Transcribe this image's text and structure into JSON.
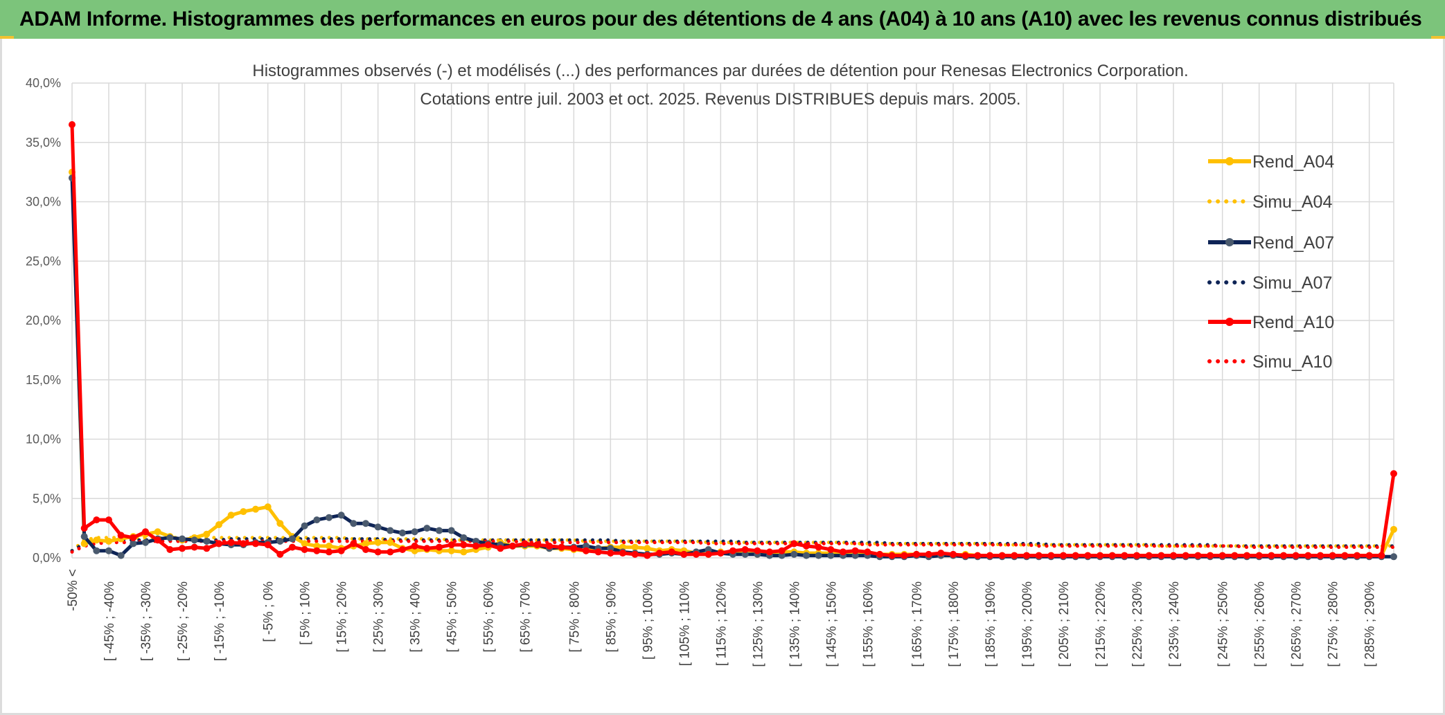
{
  "banner": {
    "title": "ADAM Informe. Histogrammes des performances en euros pour des détentions de 4 ans (A04) à 10 ans (A10) avec les revenus connus distribués"
  },
  "colors": {
    "banner_bg": "#7cc47b",
    "A04": "#FFC000",
    "A07": "#0E2456",
    "A10": "#FF0000",
    "grid": "#D9D9D9"
  },
  "chart_data": {
    "type": "line",
    "title": "Histogrammes observés (-) et modélisés (...) des performances par durées de détention pour Renesas Electronics Corporation.",
    "subtitle": "Cotations entre juil. 2003 et oct. 2025. Revenus DISTRIBUES depuis mars. 2005.",
    "xlabel": "",
    "ylabel": "",
    "ylim": [
      0,
      40
    ],
    "y_ticks": [
      "0,0%",
      "5,0%",
      "10,0%",
      "15,0%",
      "20,0%",
      "25,0%",
      "30,0%",
      "35,0%",
      "40,0%"
    ],
    "grid": true,
    "legend_position": "right",
    "x_tick_labels": [
      "-50% <",
      "[ -45% ; -40%",
      "[ -35% ; -30%",
      "[ -25% ; -20%",
      "[ -15% ; -10%",
      "[ -5% ; 0%",
      "[ 5% ; 10%",
      "[ 15% ; 20%",
      "[ 25% ; 30%",
      "[ 35% ; 40%",
      "[ 45% ; 50%",
      "[ 55% ; 60%",
      "[ 65% ; 70%",
      "[ 75% ; 80%",
      "[ 85% ; 90%",
      "[ 95% ; 100%",
      "[ 105% ; 110%",
      "[ 115% ; 120%",
      "[ 125% ; 130%",
      "[ 135% ; 140%",
      "[ 145% ; 150%",
      "[ 155% ; 160%",
      "[ 165% ; 170%",
      "[ 175% ; 180%",
      "[ 185% ; 190%",
      "[ 195% ; 200%",
      "[ 205% ; 210%",
      "[ 215% ; 220%",
      "[ 225% ; 230%",
      "[ 235% ; 240%",
      "[ 245% ; 250%",
      "[ 255% ; 260%",
      "[ 265% ; 270%",
      "[ 275% ; 280%",
      "[ 285% ; 290%"
    ],
    "series": [
      {
        "name": "Rend_A04",
        "style": "solid",
        "color": "#FFC000",
        "values": [
          32.5,
          1.2,
          1.5,
          1.4,
          1.6,
          1.8,
          2.0,
          2.2,
          1.8,
          1.5,
          1.7,
          2.0,
          2.8,
          3.6,
          3.9,
          4.1,
          4.3,
          2.9,
          1.8,
          1.2,
          1.0,
          1.0,
          0.8,
          1.0,
          1.2,
          1.3,
          1.3,
          0.8,
          0.6,
          0.7,
          0.6,
          0.6,
          0.5,
          0.7,
          0.9,
          1.3,
          1.0,
          1.0,
          1.0,
          0.8,
          0.8,
          0.7,
          0.6,
          0.8,
          0.9,
          0.9,
          0.9,
          0.8,
          0.6,
          0.7,
          0.6,
          0.4,
          0.3,
          0.5,
          0.4,
          0.4,
          0.3,
          0.4,
          0.5,
          0.5,
          0.4,
          0.4,
          0.4,
          0.4,
          0.4,
          0.3,
          0.3,
          0.3,
          0.3,
          0.3,
          0.2,
          0.2,
          0.2,
          0.3,
          0.2,
          0.2,
          0.2,
          0.2,
          0.2,
          0.2,
          0.2,
          0.2,
          0.2,
          0.2,
          0.2,
          0.2,
          0.2,
          0.2,
          0.2,
          0.2,
          0.2,
          0.2,
          0.2,
          0.2,
          0.2,
          0.2,
          0.2,
          0.2,
          0.2,
          0.2,
          0.2,
          0.2,
          0.2,
          0.2,
          0.2,
          0.2,
          0.2,
          0.2,
          2.4
        ]
      },
      {
        "name": "Simu_A04",
        "style": "dotted",
        "color": "#FFC000",
        "values": [
          0.6,
          1.5,
          1.7,
          1.7,
          1.7,
          1.7,
          1.7,
          1.7,
          1.7,
          1.7,
          1.7,
          1.7,
          1.7,
          1.7,
          1.7,
          1.7,
          1.7,
          1.7,
          1.7,
          1.7,
          1.7,
          1.7,
          1.7,
          1.6,
          1.6,
          1.6,
          1.6,
          1.6,
          1.6,
          1.6,
          1.6,
          1.5,
          1.5,
          1.5,
          1.5,
          1.5,
          1.5,
          1.5,
          1.5,
          1.5,
          1.5,
          1.5,
          1.4,
          1.4,
          1.4,
          1.4,
          1.4,
          1.4,
          1.4,
          1.4,
          1.4,
          1.4,
          1.3,
          1.3,
          1.3,
          1.3,
          1.3,
          1.3,
          1.3,
          1.3,
          1.3,
          1.3,
          1.3,
          1.3,
          1.2,
          1.2,
          1.2,
          1.2,
          1.2,
          1.2,
          1.2,
          1.2,
          1.2,
          1.2,
          1.2,
          1.2,
          1.1,
          1.1,
          1.1,
          1.1,
          1.1,
          1.1,
          1.1,
          1.1,
          1.1,
          1.1,
          1.1,
          1.1,
          1.1,
          1.0,
          1.0,
          1.0,
          1.0,
          1.0,
          1.0,
          1.0,
          1.0,
          1.0,
          1.0,
          1.0,
          1.0,
          1.0,
          1.0,
          1.0,
          1.0,
          1.0,
          1.0,
          1.0,
          1.0
        ]
      },
      {
        "name": "Rend_A07",
        "style": "solid",
        "color": "#0E2456",
        "values": [
          32.0,
          1.8,
          0.6,
          0.6,
          0.2,
          1.2,
          1.3,
          1.6,
          1.7,
          1.6,
          1.5,
          1.4,
          1.2,
          1.1,
          1.1,
          1.3,
          1.3,
          1.4,
          1.6,
          2.7,
          3.2,
          3.4,
          3.6,
          2.9,
          2.9,
          2.6,
          2.3,
          2.1,
          2.2,
          2.5,
          2.3,
          2.3,
          1.7,
          1.4,
          1.2,
          1.1,
          1.0,
          1.1,
          1.1,
          0.8,
          0.9,
          0.9,
          1.0,
          0.8,
          0.8,
          0.5,
          0.4,
          0.3,
          0.3,
          0.4,
          0.3,
          0.5,
          0.7,
          0.4,
          0.3,
          0.3,
          0.3,
          0.2,
          0.2,
          0.3,
          0.2,
          0.2,
          0.2,
          0.2,
          0.2,
          0.2,
          0.1,
          0.1,
          0.1,
          0.2,
          0.1,
          0.2,
          0.2,
          0.1,
          0.1,
          0.1,
          0.1,
          0.1,
          0.1,
          0.1,
          0.1,
          0.1,
          0.1,
          0.1,
          0.1,
          0.1,
          0.1,
          0.1,
          0.1,
          0.1,
          0.1,
          0.1,
          0.1,
          0.1,
          0.1,
          0.1,
          0.1,
          0.1,
          0.1,
          0.1,
          0.1,
          0.1,
          0.1,
          0.1,
          0.1,
          0.1,
          0.1,
          0.1,
          0.1
        ]
      },
      {
        "name": "Simu_A07",
        "style": "dotted",
        "color": "#0E2456",
        "values": [
          0.6,
          1.2,
          1.4,
          1.4,
          1.5,
          1.5,
          1.5,
          1.5,
          1.5,
          1.5,
          1.5,
          1.5,
          1.5,
          1.6,
          1.6,
          1.6,
          1.6,
          1.6,
          1.6,
          1.6,
          1.6,
          1.6,
          1.6,
          1.6,
          1.6,
          1.6,
          1.5,
          1.5,
          1.5,
          1.5,
          1.5,
          1.5,
          1.5,
          1.5,
          1.5,
          1.5,
          1.5,
          1.5,
          1.5,
          1.5,
          1.5,
          1.5,
          1.5,
          1.5,
          1.5,
          1.4,
          1.4,
          1.4,
          1.4,
          1.4,
          1.4,
          1.4,
          1.4,
          1.4,
          1.4,
          1.3,
          1.3,
          1.3,
          1.3,
          1.3,
          1.3,
          1.3,
          1.3,
          1.3,
          1.3,
          1.3,
          1.3,
          1.2,
          1.2,
          1.2,
          1.2,
          1.2,
          1.2,
          1.2,
          1.2,
          1.2,
          1.2,
          1.2,
          1.2,
          1.2,
          1.1,
          1.1,
          1.1,
          1.1,
          1.1,
          1.1,
          1.1,
          1.1,
          1.1,
          1.1,
          1.1,
          1.1,
          1.1,
          1.1,
          1.0,
          1.0,
          1.0,
          1.0,
          1.0,
          1.0,
          1.0,
          1.0,
          1.0,
          1.0,
          1.0,
          1.0,
          1.0,
          1.0,
          1.0
        ]
      },
      {
        "name": "Rend_A10",
        "style": "solid",
        "color": "#FF0000",
        "values": [
          36.5,
          2.5,
          3.2,
          3.2,
          1.9,
          1.7,
          2.2,
          1.5,
          0.7,
          0.8,
          0.9,
          0.8,
          1.2,
          1.3,
          1.2,
          1.2,
          1.1,
          0.3,
          0.9,
          0.7,
          0.6,
          0.5,
          0.6,
          1.2,
          0.7,
          0.5,
          0.5,
          0.7,
          1.0,
          0.8,
          0.9,
          1.1,
          1.1,
          1.0,
          1.1,
          0.8,
          1.0,
          1.2,
          1.1,
          1.0,
          0.9,
          0.8,
          0.6,
          0.5,
          0.4,
          0.4,
          0.3,
          0.2,
          0.4,
          0.5,
          0.3,
          0.3,
          0.3,
          0.4,
          0.6,
          0.7,
          0.6,
          0.5,
          0.6,
          1.2,
          1.0,
          0.9,
          0.7,
          0.5,
          0.6,
          0.5,
          0.3,
          0.2,
          0.2,
          0.3,
          0.3,
          0.4,
          0.3,
          0.2,
          0.2,
          0.2,
          0.2,
          0.2,
          0.2,
          0.2,
          0.2,
          0.2,
          0.2,
          0.2,
          0.2,
          0.2,
          0.2,
          0.2,
          0.2,
          0.2,
          0.2,
          0.2,
          0.2,
          0.2,
          0.2,
          0.2,
          0.2,
          0.2,
          0.2,
          0.2,
          0.2,
          0.2,
          0.2,
          0.2,
          0.2,
          0.2,
          0.2,
          0.2,
          7.1
        ]
      },
      {
        "name": "Simu_A10",
        "style": "dotted",
        "color": "#FF0000",
        "values": [
          0.5,
          1.0,
          1.2,
          1.3,
          1.3,
          1.3,
          1.4,
          1.4,
          1.4,
          1.4,
          1.4,
          1.4,
          1.4,
          1.4,
          1.4,
          1.4,
          1.4,
          1.4,
          1.4,
          1.4,
          1.4,
          1.4,
          1.4,
          1.4,
          1.4,
          1.4,
          1.4,
          1.4,
          1.4,
          1.4,
          1.4,
          1.4,
          1.4,
          1.4,
          1.4,
          1.4,
          1.4,
          1.3,
          1.3,
          1.3,
          1.3,
          1.3,
          1.3,
          1.3,
          1.3,
          1.3,
          1.3,
          1.3,
          1.3,
          1.3,
          1.3,
          1.3,
          1.2,
          1.2,
          1.2,
          1.2,
          1.2,
          1.2,
          1.2,
          1.2,
          1.2,
          1.2,
          1.2,
          1.2,
          1.2,
          1.1,
          1.1,
          1.1,
          1.1,
          1.1,
          1.1,
          1.1,
          1.1,
          1.1,
          1.1,
          1.1,
          1.1,
          1.1,
          1.1,
          1.0,
          1.0,
          1.0,
          1.0,
          1.0,
          1.0,
          1.0,
          1.0,
          1.0,
          1.0,
          1.0,
          1.0,
          1.0,
          1.0,
          1.0,
          1.0,
          1.0,
          0.9,
          0.9,
          0.9,
          0.9,
          0.9,
          0.9,
          0.9,
          0.9,
          0.9,
          0.9,
          0.9,
          0.9,
          0.9
        ]
      }
    ]
  }
}
